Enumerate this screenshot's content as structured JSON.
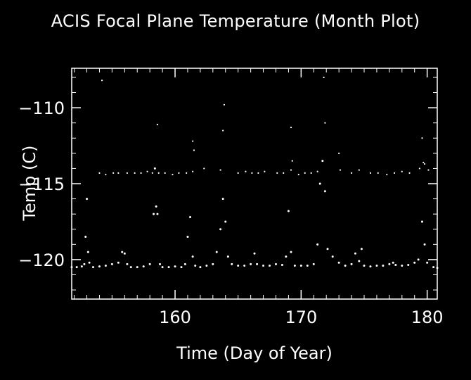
{
  "chart_data": {
    "type": "scatter",
    "title": "ACIS Focal Plane Temperature (Month Plot)",
    "xlabel": "Time (Day of Year)",
    "ylabel": "Temp (C)",
    "xlim": [
      151.8,
      180.8
    ],
    "ylim": [
      -122.6,
      -107.4
    ],
    "xticks_major": [
      160,
      170,
      180
    ],
    "yticks_major": [
      -110,
      -115,
      -120
    ],
    "grid": false,
    "colors": {
      "background": "#000000",
      "foreground": "#ffffff"
    },
    "series": [
      {
        "values": [
          [
            151.8,
            -120.5
          ],
          [
            152.2,
            -120.5
          ],
          [
            152.6,
            -120.45
          ],
          [
            152.8,
            -120.3
          ],
          [
            152.9,
            -118.5
          ],
          [
            153.0,
            -116.0
          ],
          [
            153.1,
            -119.5
          ],
          [
            153.2,
            -120.2
          ],
          [
            153.5,
            -120.5
          ],
          [
            154.0,
            -120.45
          ],
          [
            154.5,
            -120.4
          ],
          [
            155.0,
            -120.3
          ],
          [
            155.5,
            -120.2
          ],
          [
            155.8,
            -119.5
          ],
          [
            156.0,
            -119.6
          ],
          [
            156.2,
            -120.3
          ],
          [
            156.5,
            -120.5
          ],
          [
            157.0,
            -120.5
          ],
          [
            157.5,
            -120.45
          ],
          [
            158.0,
            -120.3
          ],
          [
            158.3,
            -117.0
          ],
          [
            158.4,
            -114.0
          ],
          [
            158.5,
            -116.5
          ],
          [
            158.6,
            -117.0
          ],
          [
            158.8,
            -120.3
          ],
          [
            159.0,
            -120.5
          ],
          [
            159.5,
            -120.5
          ],
          [
            160.0,
            -120.45
          ],
          [
            160.5,
            -120.5
          ],
          [
            160.8,
            -120.3
          ],
          [
            161.0,
            -118.5
          ],
          [
            161.2,
            -117.2
          ],
          [
            161.4,
            -119.8
          ],
          [
            161.6,
            -120.4
          ],
          [
            162.0,
            -120.5
          ],
          [
            162.5,
            -120.4
          ],
          [
            163.0,
            -120.3
          ],
          [
            163.3,
            -119.5
          ],
          [
            163.6,
            -118.0
          ],
          [
            163.8,
            -116.0
          ],
          [
            164.0,
            -117.5
          ],
          [
            164.2,
            -119.8
          ],
          [
            164.5,
            -120.3
          ],
          [
            165.0,
            -120.4
          ],
          [
            165.5,
            -120.4
          ],
          [
            166.0,
            -120.3
          ],
          [
            166.3,
            -119.6
          ],
          [
            166.5,
            -120.3
          ],
          [
            167.0,
            -120.4
          ],
          [
            167.5,
            -120.4
          ],
          [
            168.0,
            -120.3
          ],
          [
            168.5,
            -120.35
          ],
          [
            168.8,
            -119.8
          ],
          [
            169.0,
            -116.8
          ],
          [
            169.2,
            -119.5
          ],
          [
            169.5,
            -120.4
          ],
          [
            170.0,
            -120.4
          ],
          [
            170.5,
            -120.4
          ],
          [
            171.0,
            -120.3
          ],
          [
            171.3,
            -119.0
          ],
          [
            171.5,
            -115.0
          ],
          [
            171.7,
            -113.5
          ],
          [
            171.9,
            -115.5
          ],
          [
            172.1,
            -119.3
          ],
          [
            172.5,
            -119.8
          ],
          [
            173.0,
            -120.2
          ],
          [
            173.5,
            -120.4
          ],
          [
            174.0,
            -120.3
          ],
          [
            174.3,
            -119.6
          ],
          [
            174.6,
            -120.1
          ],
          [
            174.8,
            -119.3
          ],
          [
            175.0,
            -120.4
          ],
          [
            175.5,
            -120.45
          ],
          [
            176.0,
            -120.4
          ],
          [
            176.5,
            -120.4
          ],
          [
            177.0,
            -120.3
          ],
          [
            177.3,
            -120.2
          ],
          [
            177.5,
            -120.35
          ],
          [
            178.0,
            -120.4
          ],
          [
            178.5,
            -120.35
          ],
          [
            179.0,
            -120.2
          ],
          [
            179.3,
            -120.0
          ],
          [
            179.6,
            -117.5
          ],
          [
            179.8,
            -119.0
          ],
          [
            180.0,
            -120.2
          ],
          [
            180.5,
            -120.5
          ],
          [
            180.8,
            -120.55
          ]
        ]
      },
      {
        "values": [
          [
            154.0,
            -114.3
          ],
          [
            154.5,
            -114.4
          ],
          [
            155.1,
            -114.3
          ],
          [
            155.5,
            -114.3
          ],
          [
            156.2,
            -114.3
          ],
          [
            156.8,
            -114.3
          ],
          [
            157.3,
            -114.3
          ],
          [
            157.8,
            -114.2
          ],
          [
            158.2,
            -114.3
          ],
          [
            158.7,
            -114.3
          ],
          [
            159.2,
            -114.3
          ],
          [
            159.8,
            -114.4
          ],
          [
            160.3,
            -114.3
          ],
          [
            160.9,
            -114.3
          ],
          [
            161.4,
            -114.2
          ],
          [
            162.3,
            -114.0
          ],
          [
            163.6,
            -114.1
          ],
          [
            165.0,
            -114.3
          ],
          [
            165.6,
            -114.2
          ],
          [
            166.1,
            -114.3
          ],
          [
            166.6,
            -114.3
          ],
          [
            167.1,
            -114.2
          ],
          [
            168.1,
            -114.3
          ],
          [
            168.6,
            -114.3
          ],
          [
            169.2,
            -114.1
          ],
          [
            169.8,
            -114.4
          ],
          [
            170.3,
            -114.3
          ],
          [
            170.8,
            -114.3
          ],
          [
            171.3,
            -114.2
          ],
          [
            173.1,
            -114.1
          ],
          [
            174.0,
            -114.3
          ],
          [
            174.6,
            -114.1
          ],
          [
            175.5,
            -114.3
          ],
          [
            176.1,
            -114.3
          ],
          [
            176.8,
            -114.4
          ],
          [
            177.4,
            -114.3
          ],
          [
            178.0,
            -114.2
          ],
          [
            178.6,
            -114.3
          ],
          [
            179.4,
            -114.0
          ],
          [
            179.8,
            -113.7
          ],
          [
            180.1,
            -114.1
          ]
        ]
      },
      {
        "values": [
          [
            154.2,
            -108.2
          ],
          [
            158.6,
            -111.1
          ],
          [
            161.4,
            -112.2
          ],
          [
            161.5,
            -112.8
          ],
          [
            163.8,
            -111.5
          ],
          [
            163.9,
            -109.8
          ],
          [
            169.2,
            -111.3
          ],
          [
            169.3,
            -113.5
          ],
          [
            171.8,
            -108.0
          ],
          [
            171.9,
            -111.0
          ],
          [
            173.0,
            -113.0
          ],
          [
            179.6,
            -112.0
          ],
          [
            179.7,
            -113.6
          ]
        ]
      }
    ]
  }
}
